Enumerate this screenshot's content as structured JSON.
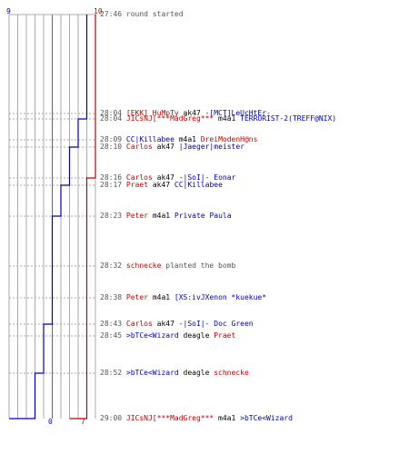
{
  "colors": {
    "team_red": "#c00000",
    "team_blue": "#0000b0",
    "text": "#555555",
    "grid": "#aaaaaa",
    "axis": "#666666"
  },
  "chart_data": {
    "type": "step-line",
    "x_label_top": {
      "blue": "9",
      "red": "10"
    },
    "x_label_bottom": {
      "blue": "0",
      "red": "7"
    },
    "xlim": [
      0,
      10
    ],
    "series": [
      {
        "color": "#0000b0",
        "counts": [
          9,
          9,
          8,
          8,
          7,
          7,
          6,
          5,
          5,
          5,
          4,
          4,
          3,
          3,
          2,
          2,
          1,
          1,
          1,
          0
        ],
        "end": 0
      },
      {
        "color": "#c00000",
        "counts": [
          10,
          10,
          10,
          10,
          10,
          9,
          9,
          9,
          9,
          9,
          9,
          9,
          9,
          9,
          9,
          9,
          9,
          8,
          8,
          7
        ],
        "end": 7
      }
    ],
    "events": [
      {
        "time": "27:46",
        "parts": [
          {
            "text": "round started",
            "color": "gray"
          }
        ]
      },
      {
        "time": "28:04",
        "parts": [
          {
            "text": "[EKK] HuMpTy",
            "color": "red"
          },
          {
            "text": " ak47 ",
            "color": "plain"
          },
          {
            "text": "-[MCT]LeUcHtEr-",
            "color": "blue"
          }
        ]
      },
      {
        "time": "28:04",
        "parts": [
          {
            "text": "JICsNJ[***MadGreg***",
            "color": "red"
          },
          {
            "text": " m4a1 ",
            "color": "plain"
          },
          {
            "text": "TERRORIST-2(TREFF@NIX)",
            "color": "blue"
          }
        ]
      },
      {
        "time": "28:09",
        "parts": [
          {
            "text": "CC|Killabee",
            "color": "blue"
          },
          {
            "text": " m4a1 ",
            "color": "plain"
          },
          {
            "text": "DreiModenH@ns",
            "color": "red"
          }
        ]
      },
      {
        "time": "28:10",
        "parts": [
          {
            "text": "Carlos",
            "color": "red"
          },
          {
            "text": " ak47 ",
            "color": "plain"
          },
          {
            "text": "|Jaeger|meister",
            "color": "blue"
          }
        ]
      },
      {
        "time": "28:16",
        "parts": [
          {
            "text": "Carlos",
            "color": "red"
          },
          {
            "text": " ak47 ",
            "color": "plain"
          },
          {
            "text": "-|SoI|- Eonar",
            "color": "blue"
          }
        ]
      },
      {
        "time": "28:17",
        "parts": [
          {
            "text": "Praet",
            "color": "red"
          },
          {
            "text": " ak47 ",
            "color": "plain"
          },
          {
            "text": "CC|Killabee",
            "color": "blue"
          }
        ]
      },
      {
        "time": "28:23",
        "parts": [
          {
            "text": "Peter",
            "color": "red"
          },
          {
            "text": " m4a1 ",
            "color": "plain"
          },
          {
            "text": "Private Paula",
            "color": "blue"
          }
        ]
      },
      {
        "time": "28:32",
        "parts": [
          {
            "text": "schnecke",
            "color": "red"
          },
          {
            "text": " planted the bomb",
            "color": "gray"
          }
        ]
      },
      {
        "time": "28:38",
        "parts": [
          {
            "text": "Peter",
            "color": "red"
          },
          {
            "text": " m4a1 ",
            "color": "plain"
          },
          {
            "text": "[XS:ivJXenon *kuekue*",
            "color": "blue"
          }
        ]
      },
      {
        "time": "28:43",
        "parts": [
          {
            "text": "Carlos",
            "color": "red"
          },
          {
            "text": " ak47 ",
            "color": "plain"
          },
          {
            "text": "-|SoI|- Doc Green",
            "color": "blue"
          }
        ]
      },
      {
        "time": "28:45",
        "parts": [
          {
            "text": ">bTCe<Wizard",
            "color": "blue"
          },
          {
            "text": " deagle ",
            "color": "plain"
          },
          {
            "text": "Praet",
            "color": "red"
          }
        ]
      },
      {
        "time": "28:52",
        "parts": [
          {
            "text": ">bTCe<Wizard",
            "color": "blue"
          },
          {
            "text": " deagle ",
            "color": "plain"
          },
          {
            "text": "schnecke",
            "color": "red"
          }
        ]
      },
      {
        "time": "29:00",
        "parts": [
          {
            "text": "JICsNJ[***MadGreg***",
            "color": "red"
          },
          {
            "text": " m4a1 ",
            "color": "plain"
          },
          {
            "text": ">bTCe<Wizard",
            "color": "blue"
          }
        ]
      }
    ]
  }
}
